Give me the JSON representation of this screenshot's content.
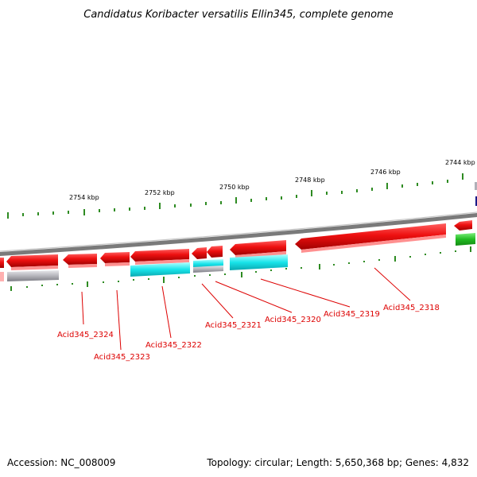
{
  "title": "Candidatus Koribacter versatilis Ellin345, complete genome",
  "scale_labels": [
    "2754 kbp",
    "2752 kbp",
    "2750 kbp",
    "2748 kbp",
    "2746 kbp",
    "2744 kbp"
  ],
  "gene_labels": [
    "Acid345_2324",
    "Acid345_2323",
    "Acid345_2322",
    "Acid345_2321",
    "Acid345_2320",
    "Acid345_2319",
    "Acid345_2318"
  ],
  "footer": {
    "accession": "Accession: NC_008009",
    "topology": "Topology: circular; Length: 5,650,368 bp; Genes: 4,832"
  },
  "colors": {
    "forward_gene": "#e81010",
    "cds_cyan": "#10e8ec",
    "cds_grey": "#b0b0b8",
    "rna_green": "#22bb22",
    "backbone": "#8a8a8a",
    "ticks": "#2e8b22",
    "label": "#dd0000"
  }
}
